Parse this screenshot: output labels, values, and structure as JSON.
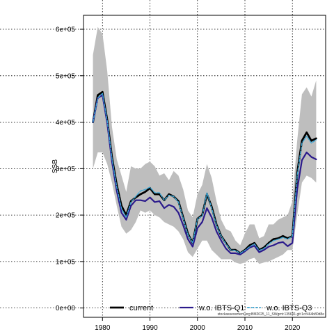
{
  "chart_data": {
    "type": "line",
    "ylabel": "SSB",
    "xlabel": "",
    "xlim": [
      1976,
      2027
    ],
    "ylim": [
      -20000,
      630000
    ],
    "x_ticks": [
      1980,
      1990,
      2000,
      2010,
      2020
    ],
    "x_tick_labels": [
      "1980",
      "1990",
      "2000",
      "2010",
      "2020"
    ],
    "y_ticks": [
      0,
      100000,
      200000,
      300000,
      400000,
      500000,
      600000
    ],
    "y_tick_labels": [
      "0e+00",
      "1e+05",
      "2e+05",
      "3e+05",
      "4e+05",
      "5e+05",
      "6e+05"
    ],
    "grid": true,
    "legend_position": "bottom",
    "footer": "stockassessment.org:BM2025_11_SWgrnt:135691.git:1cc464b80d8e",
    "colors": {
      "band": "#bebebe",
      "current": "#000000",
      "wo_q1": "#2b1a8c",
      "wo_q3": "#3aa8d8",
      "grid": "#000000"
    },
    "years": [
      1978,
      1979,
      1980,
      1981,
      1982,
      1983,
      1984,
      1985,
      1986,
      1987,
      1988,
      1989,
      1990,
      1991,
      1992,
      1993,
      1994,
      1995,
      1996,
      1997,
      1998,
      1999,
      2000,
      2001,
      2002,
      2003,
      2004,
      2005,
      2006,
      2007,
      2008,
      2009,
      2010,
      2011,
      2012,
      2013,
      2014,
      2015,
      2016,
      2017,
      2018,
      2019,
      2020,
      2021,
      2022,
      2023,
      2024,
      2025
    ],
    "band": {
      "lower": [
        300000,
        335000,
        335000,
        310000,
        270000,
        220000,
        175000,
        160000,
        168000,
        185000,
        210000,
        205000,
        210000,
        200000,
        195000,
        185000,
        180000,
        175000,
        165000,
        148000,
        120000,
        110000,
        128000,
        145000,
        145000,
        125000,
        115000,
        105000,
        105000,
        105000,
        98000,
        95000,
        98000,
        105000,
        108000,
        95000,
        98000,
        100000,
        105000,
        110000,
        115000,
        125000,
        125000,
        200000,
        270000,
        285000,
        280000,
        270000
      ],
      "upper": [
        545000,
        605000,
        590000,
        510000,
        390000,
        320000,
        285000,
        250000,
        305000,
        300000,
        300000,
        310000,
        315000,
        305000,
        285000,
        290000,
        275000,
        295000,
        285000,
        255000,
        210000,
        195000,
        245000,
        265000,
        310000,
        280000,
        230000,
        190000,
        170000,
        165000,
        145000,
        135000,
        160000,
        180000,
        180000,
        150000,
        155000,
        180000,
        180000,
        190000,
        195000,
        200000,
        230000,
        360000,
        460000,
        475000,
        455000,
        490000
      ]
    },
    "series": [
      {
        "name": "current",
        "values": [
          400000,
          458000,
          465000,
          405000,
          325000,
          265000,
          220000,
          200000,
          230000,
          238000,
          245000,
          250000,
          258000,
          245000,
          245000,
          232000,
          245000,
          240000,
          230000,
          195000,
          160000,
          140000,
          192000,
          200000,
          245000,
          218000,
          180000,
          155000,
          140000,
          125000,
          125000,
          118000,
          125000,
          135000,
          140000,
          125000,
          130000,
          140000,
          148000,
          150000,
          155000,
          150000,
          155000,
          290000,
          360000,
          378000,
          360000,
          365000
        ]
      },
      {
        "name": "w.o. IBTS-Q1",
        "values": [
          400000,
          452000,
          458000,
          398000,
          315000,
          252000,
          205000,
          190000,
          220000,
          232000,
          232000,
          230000,
          238000,
          228000,
          230000,
          215000,
          222000,
          218000,
          205000,
          178000,
          148000,
          132000,
          172000,
          185000,
          215000,
          195000,
          165000,
          145000,
          128000,
          118000,
          118000,
          115000,
          122000,
          130000,
          134000,
          120000,
          125000,
          132000,
          135000,
          140000,
          142000,
          133000,
          140000,
          255000,
          318000,
          335000,
          325000,
          320000
        ]
      },
      {
        "name": "w.o. IBTS-Q3",
        "values": [
          400000,
          452000,
          462000,
          403000,
          322000,
          260000,
          214000,
          195000,
          228000,
          240000,
          252000,
          255000,
          260000,
          248000,
          248000,
          232000,
          243000,
          240000,
          228000,
          193000,
          158000,
          140000,
          192000,
          198000,
          248000,
          215000,
          178000,
          155000,
          138000,
          125000,
          124000,
          118000,
          124000,
          132000,
          138000,
          124000,
          128000,
          138000,
          145000,
          148000,
          152000,
          148000,
          155000,
          285000,
          355000,
          370000,
          355000,
          362000
        ]
      }
    ]
  }
}
